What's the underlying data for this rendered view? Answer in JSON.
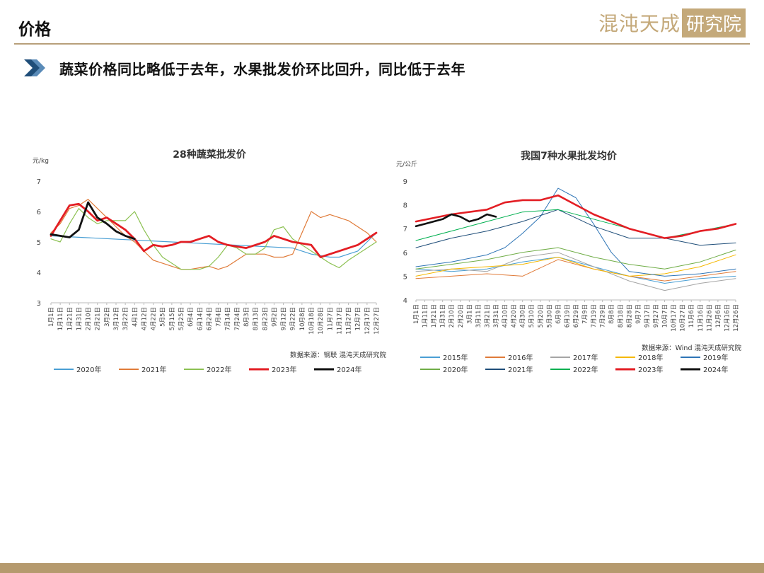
{
  "header": {
    "title": "价格",
    "brand_main": "混沌天成",
    "brand_boxed": "研究院"
  },
  "headline": {
    "text": "蔬菜价格同比略低于去年，水果批发价环比回升，同比低于去年"
  },
  "colors": {
    "accent": "#b8a07a",
    "arrow": "#1f4e79"
  },
  "chart_data": [
    {
      "type": "line",
      "title": "28种蔬菜批发价",
      "ylabel": "元/kg",
      "ylim": [
        3,
        7
      ],
      "yticks": [
        3,
        4,
        5,
        6,
        7
      ],
      "source": "数据来源：钢联  混沌天成研究院",
      "grid": false,
      "legend": "bottom",
      "x_ticks": [
        "1月1日",
        "1月11日",
        "1月21日",
        "1月31日",
        "2月10日",
        "2月21日",
        "3月2日",
        "3月12日",
        "3月22日",
        "4月1日",
        "4月12日",
        "4月22日",
        "5月5日",
        "5月15日",
        "5月25日",
        "6月4日",
        "6月14日",
        "6月24日",
        "7月4日",
        "7月14日",
        "7月24日",
        "8月3日",
        "8月13日",
        "8月23日",
        "9月2日",
        "9月12日",
        "9月22日",
        "10月8日",
        "10月18日",
        "10月28日",
        "11月7日",
        "11月17日",
        "11月27日",
        "12月7日",
        "12月17日",
        "12月27日"
      ],
      "series": [
        {
          "name": "2020年",
          "color": "#4a9fd4",
          "width": 1.2,
          "x": [
            0,
            26,
            27,
            28,
            29,
            30,
            31,
            32,
            33,
            34,
            35
          ],
          "values": [
            5.2,
            4.8,
            4.7,
            4.6,
            4.55,
            4.5,
            4.5,
            4.6,
            4.7,
            5.0,
            5.3
          ]
        },
        {
          "name": "2021年",
          "color": "#e07b39",
          "width": 1.2,
          "x": [
            0,
            1,
            2,
            3,
            4,
            5,
            6,
            7,
            8,
            9,
            10,
            11,
            12,
            13,
            14,
            15,
            16,
            17,
            18,
            19,
            20,
            21,
            22,
            23,
            24,
            25,
            26,
            27,
            28,
            29,
            30,
            31,
            32,
            33,
            34,
            35
          ],
          "values": [
            5.3,
            5.6,
            6.1,
            6.2,
            6.4,
            6.1,
            5.8,
            5.5,
            5.2,
            5.0,
            4.7,
            4.4,
            4.3,
            4.2,
            4.1,
            4.1,
            4.15,
            4.2,
            4.1,
            4.2,
            4.4,
            4.6,
            4.6,
            4.6,
            4.5,
            4.5,
            4.6,
            5.3,
            6.0,
            5.8,
            5.9,
            5.8,
            5.7,
            5.5,
            5.3,
            5.0
          ]
        },
        {
          "name": "2022年",
          "color": "#8cc152",
          "width": 1.2,
          "x": [
            0,
            1,
            2,
            3,
            4,
            5,
            6,
            7,
            8,
            9,
            10,
            11,
            12,
            13,
            14,
            15,
            16,
            17,
            18,
            19,
            20,
            21,
            22,
            23,
            24,
            25,
            26,
            27,
            28,
            29,
            30,
            31,
            32,
            33,
            34,
            35
          ],
          "values": [
            5.1,
            5.0,
            5.6,
            6.1,
            5.8,
            5.6,
            5.7,
            5.7,
            5.7,
            6.0,
            5.4,
            4.9,
            4.5,
            4.3,
            4.1,
            4.1,
            4.1,
            4.2,
            4.5,
            4.9,
            4.8,
            4.6,
            4.6,
            4.8,
            5.4,
            5.5,
            5.1,
            4.9,
            4.7,
            4.5,
            4.3,
            4.15,
            4.4,
            4.6,
            4.8,
            5.0
          ]
        },
        {
          "name": "2023年",
          "color": "#e31e24",
          "width": 2.8,
          "x": [
            0,
            1,
            2,
            3,
            4,
            5,
            6,
            7,
            8,
            9,
            10,
            11,
            12,
            13,
            14,
            15,
            16,
            17,
            18,
            19,
            20,
            21,
            22,
            23,
            24,
            25,
            26,
            27,
            28,
            29,
            30,
            31,
            32,
            33,
            34,
            35
          ],
          "values": [
            5.2,
            5.7,
            6.2,
            6.25,
            6.0,
            5.7,
            5.8,
            5.6,
            5.4,
            5.1,
            4.7,
            4.9,
            4.85,
            4.9,
            5.0,
            5.0,
            5.1,
            5.2,
            5.0,
            4.9,
            4.85,
            4.8,
            4.9,
            5.0,
            5.2,
            5.1,
            5.0,
            4.95,
            4.9,
            4.5,
            4.6,
            4.7,
            4.8,
            4.9,
            5.1,
            5.3
          ]
        },
        {
          "name": "2024年",
          "color": "#111111",
          "width": 2.8,
          "x": [
            0,
            1,
            2,
            3,
            4,
            5,
            6,
            7,
            8,
            9
          ],
          "values": [
            5.25,
            5.2,
            5.15,
            5.4,
            6.3,
            5.8,
            5.6,
            5.35,
            5.2,
            5.1
          ]
        }
      ]
    },
    {
      "type": "line",
      "title": "我国7种水果批发均价",
      "ylabel": "元/公斤",
      "ylim": [
        4,
        9
      ],
      "yticks": [
        4,
        5,
        6,
        7,
        8,
        9
      ],
      "source": "数据来源：Wind  混沌天成研究院",
      "grid": false,
      "legend": "bottom",
      "x_ticks": [
        "1月1日",
        "1月11日",
        "1月21日",
        "1月31日",
        "2月10日",
        "2月20日",
        "3月1日",
        "3月11日",
        "3月21日",
        "3月31日",
        "4月10日",
        "4月20日",
        "4月30日",
        "5月10日",
        "5月20日",
        "5月30日",
        "6月9日",
        "6月19日",
        "6月29日",
        "7月9日",
        "7月19日",
        "7月29日",
        "8月8日",
        "8月18日",
        "8月28日",
        "9月7日",
        "9月17日",
        "9月27日",
        "10月7日",
        "10月17日",
        "10月27日",
        "11月6日",
        "11月16日",
        "11月26日",
        "12月6日",
        "12月16日",
        "12月26日"
      ],
      "series": [
        {
          "name": "2015年",
          "color": "#4a9fd4",
          "width": 1.0,
          "x": [
            0,
            4,
            8,
            12,
            16,
            20,
            24,
            28,
            32,
            36
          ],
          "values": [
            5.3,
            5.2,
            5.3,
            5.6,
            5.8,
            5.4,
            5.0,
            4.7,
            4.9,
            5.0
          ]
        },
        {
          "name": "2016年",
          "color": "#e07b39",
          "width": 1.0,
          "x": [
            0,
            4,
            8,
            12,
            16,
            20,
            24,
            28,
            32,
            36
          ],
          "values": [
            4.9,
            5.0,
            5.1,
            5.0,
            5.7,
            5.3,
            5.0,
            4.8,
            5.0,
            5.2
          ]
        },
        {
          "name": "2017年",
          "color": "#a5a5a5",
          "width": 1.0,
          "x": [
            0,
            4,
            8,
            12,
            16,
            20,
            24,
            28,
            32,
            36
          ],
          "values": [
            5.2,
            5.3,
            5.2,
            5.8,
            6.0,
            5.4,
            4.8,
            4.4,
            4.7,
            4.9
          ]
        },
        {
          "name": "2018年",
          "color": "#f5b800",
          "width": 1.0,
          "x": [
            0,
            4,
            8,
            12,
            16,
            20,
            24,
            28,
            32,
            36
          ],
          "values": [
            5.0,
            5.3,
            5.4,
            5.5,
            5.8,
            5.3,
            5.0,
            5.1,
            5.4,
            5.9
          ]
        },
        {
          "name": "2019年",
          "color": "#2e75b6",
          "width": 1.0,
          "x": [
            0,
            4,
            8,
            10,
            12,
            14,
            16,
            18,
            20,
            22,
            24,
            28,
            32,
            36
          ],
          "values": [
            5.4,
            5.6,
            5.9,
            6.2,
            6.8,
            7.5,
            8.7,
            8.3,
            7.2,
            6.0,
            5.2,
            5.0,
            5.1,
            5.3
          ]
        },
        {
          "name": "2020年",
          "color": "#70ad47",
          "width": 1.0,
          "x": [
            0,
            4,
            8,
            12,
            16,
            20,
            24,
            28,
            32,
            36
          ],
          "values": [
            5.3,
            5.5,
            5.7,
            6.0,
            6.2,
            5.8,
            5.5,
            5.3,
            5.6,
            6.1
          ]
        },
        {
          "name": "2021年",
          "color": "#1f4e79",
          "width": 1.0,
          "x": [
            0,
            4,
            8,
            12,
            16,
            20,
            24,
            28,
            32,
            36
          ],
          "values": [
            6.2,
            6.6,
            6.9,
            7.3,
            7.8,
            7.1,
            6.6,
            6.6,
            6.3,
            6.4
          ]
        },
        {
          "name": "2022年",
          "color": "#00b050",
          "width": 1.0,
          "x": [
            0,
            4,
            8,
            12,
            16,
            20,
            24,
            28,
            32,
            36
          ],
          "values": [
            6.5,
            6.9,
            7.3,
            7.7,
            7.8,
            7.4,
            7.0,
            6.6,
            6.9,
            7.2
          ]
        },
        {
          "name": "2023年",
          "color": "#e31e24",
          "width": 2.6,
          "x": [
            0,
            4,
            8,
            10,
            12,
            14,
            16,
            18,
            20,
            22,
            24,
            26,
            28,
            30,
            32,
            34,
            36
          ],
          "values": [
            7.3,
            7.6,
            7.8,
            8.1,
            8.2,
            8.2,
            8.4,
            8.0,
            7.6,
            7.3,
            7.0,
            6.8,
            6.6,
            6.7,
            6.9,
            7.0,
            7.2
          ]
        },
        {
          "name": "2024年",
          "color": "#111111",
          "width": 2.6,
          "x": [
            0,
            1,
            2,
            3,
            4,
            5,
            6,
            7,
            8,
            9
          ],
          "values": [
            7.1,
            7.2,
            7.3,
            7.4,
            7.6,
            7.5,
            7.3,
            7.4,
            7.6,
            7.5
          ]
        }
      ]
    }
  ]
}
